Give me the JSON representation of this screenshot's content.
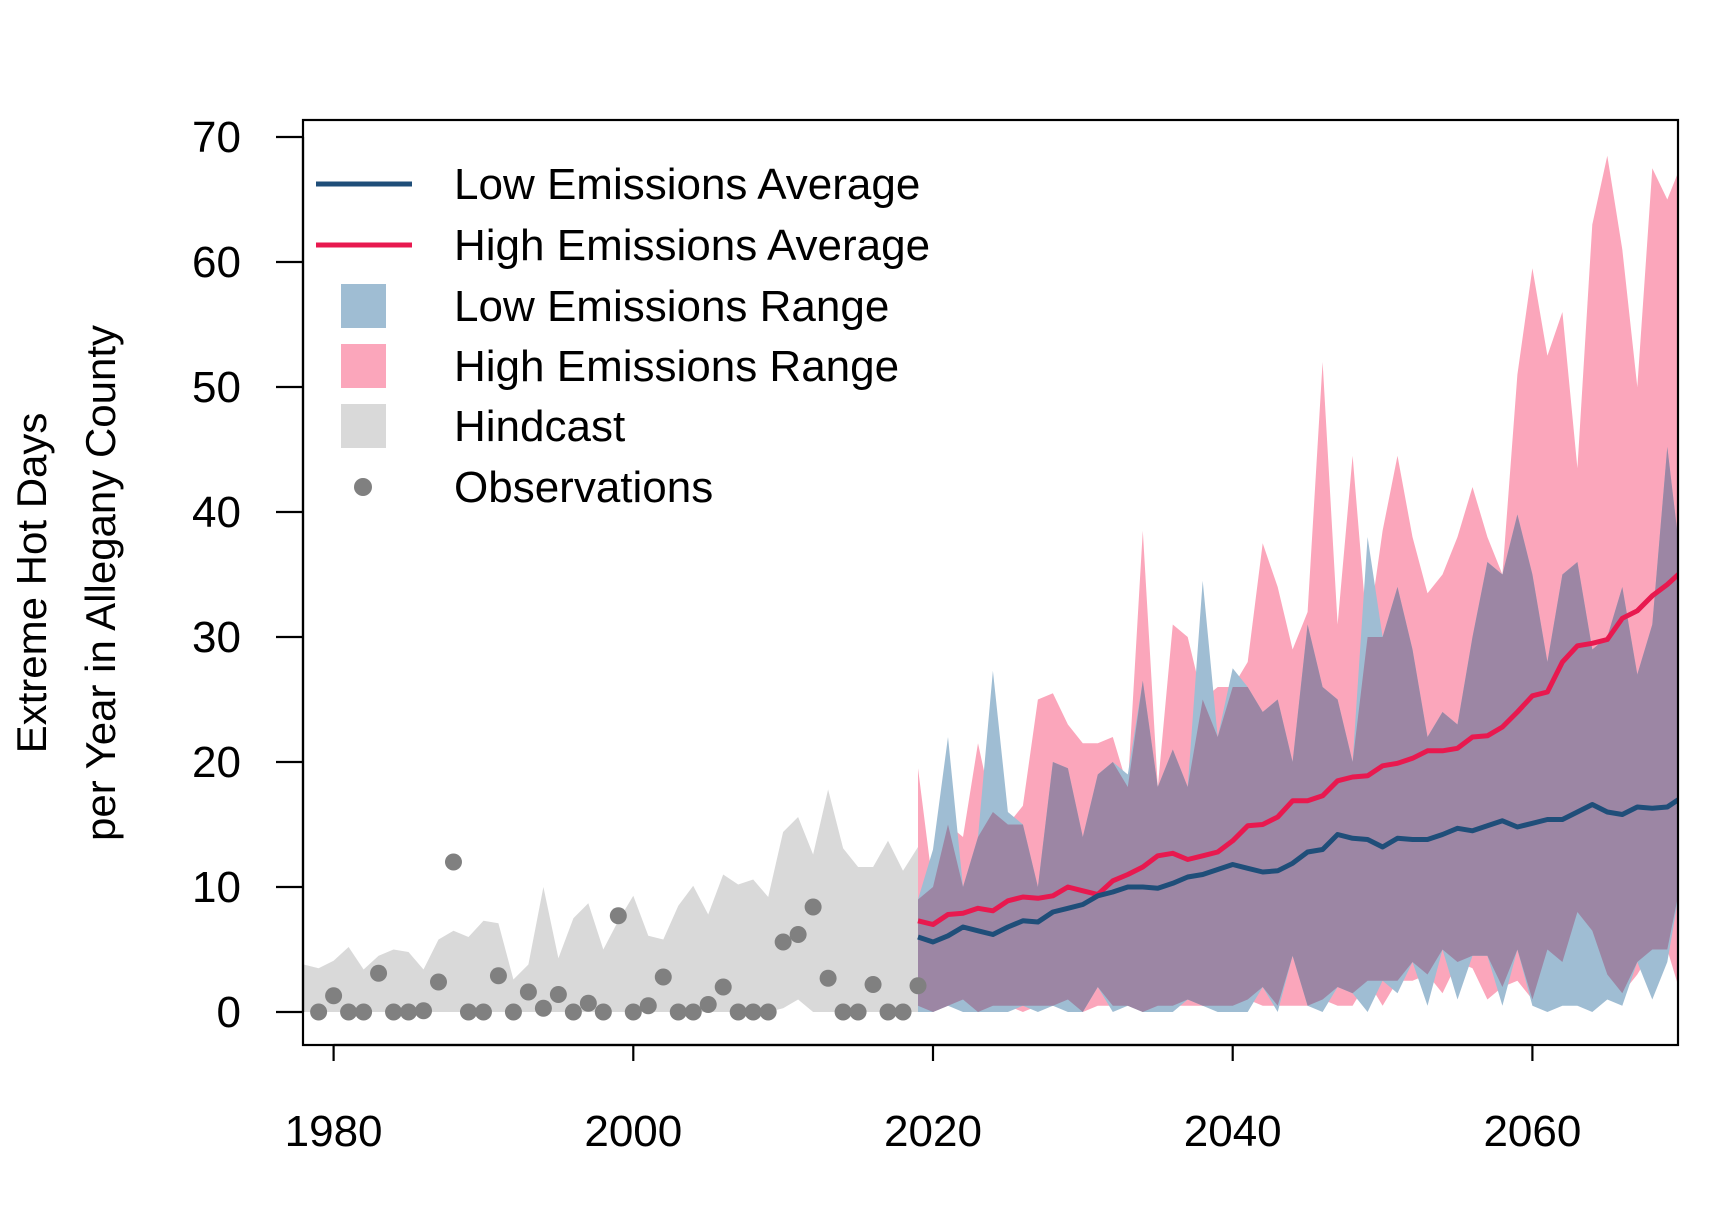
{
  "colors": {
    "low_line": "#1f4e79",
    "high_line": "#e8194f",
    "low_range": "#9fbdd3",
    "high_range": "#fba6bb",
    "overlap": "#9c86a4",
    "hindcast": "#d9d9d9",
    "observations": "#808080"
  },
  "chart_data": {
    "type": "line",
    "ylabel_lines": [
      "Extreme Hot Days",
      "per Year in Allegany County"
    ],
    "xlim": [
      1978,
      2070
    ],
    "ylim": [
      -2.7,
      70
    ],
    "x_ticks": [
      1980,
      2000,
      2020,
      2040,
      2060
    ],
    "x_tick_labels": [
      "1980",
      "2000",
      "2020",
      "2040",
      "2060"
    ],
    "y_ticks": [
      0,
      10,
      20,
      30,
      40,
      50,
      60,
      70
    ],
    "y_tick_labels": [
      "0",
      "10",
      "20",
      "30",
      "40",
      "50",
      "60",
      "70"
    ],
    "grid": false,
    "legend_position": "top-left",
    "legend": [
      {
        "label": "Low Emissions Average",
        "symbol": "line",
        "color": "#1f4e79"
      },
      {
        "label": "High Emissions Average",
        "symbol": "line",
        "color": "#e8194f"
      },
      {
        "label": "Low Emissions Range",
        "symbol": "box",
        "color": "#9fbdd3"
      },
      {
        "label": "High Emissions Range",
        "symbol": "box",
        "color": "#fba6bb"
      },
      {
        "label": "Hindcast",
        "symbol": "box",
        "color": "#d9d9d9"
      },
      {
        "label": "Observations",
        "symbol": "point",
        "color": "#808080"
      }
    ],
    "hindcast": {
      "x": [
        1978,
        1979,
        1980,
        1981,
        1982,
        1983,
        1984,
        1985,
        1986,
        1987,
        1988,
        1989,
        1990,
        1991,
        1992,
        1993,
        1994,
        1995,
        1996,
        1997,
        1998,
        1999,
        2000,
        2001,
        2002,
        2003,
        2004,
        2005,
        2006,
        2007,
        2008,
        2009,
        2010,
        2011,
        2012,
        2013,
        2014,
        2015,
        2016,
        2017,
        2018,
        2019
      ],
      "upper": [
        3.8,
        3.5,
        4.1,
        5.2,
        3.4,
        4.5,
        5.0,
        4.8,
        3.4,
        5.8,
        6.5,
        6.0,
        7.3,
        7.1,
        2.6,
        3.8,
        10.0,
        4.3,
        7.5,
        8.7,
        5.0,
        7.3,
        9.3,
        6.1,
        5.8,
        8.5,
        10.1,
        7.8,
        11.0,
        10.2,
        10.6,
        9.2,
        14.4,
        15.6,
        12.6,
        17.8,
        13.1,
        11.6,
        11.6,
        13.7,
        11.3,
        13.2
      ],
      "lower": [
        0,
        0,
        0,
        0,
        0,
        0,
        0,
        0,
        0,
        0,
        0,
        0,
        0,
        0,
        0,
        0,
        0,
        0,
        0,
        0,
        0,
        0,
        0,
        0,
        0,
        0,
        0,
        0,
        0,
        0,
        0,
        0,
        0.3,
        1.0,
        0,
        0,
        0,
        0,
        0,
        0,
        0,
        0
      ]
    },
    "observations": {
      "x": [
        1979,
        1980,
        1981,
        1982,
        1983,
        1984,
        1985,
        1986,
        1987,
        1988,
        1989,
        1990,
        1991,
        1992,
        1993,
        1994,
        1995,
        1996,
        1997,
        1998,
        1999,
        2000,
        2001,
        2002,
        2003,
        2004,
        2005,
        2006,
        2007,
        2008,
        2009,
        2010,
        2011,
        2012,
        2013,
        2014,
        2015,
        2016,
        2017,
        2018,
        2019
      ],
      "y": [
        0,
        1.3,
        0,
        0,
        3.1,
        0,
        0,
        0.1,
        2.4,
        12.0,
        0,
        0,
        2.9,
        0,
        1.6,
        0.3,
        1.4,
        0,
        0.7,
        0,
        7.7,
        0,
        0.5,
        2.8,
        0,
        0,
        0.6,
        2.0,
        0,
        0,
        0,
        5.6,
        6.2,
        8.4,
        2.7,
        0,
        0,
        2.2,
        0,
        0,
        2.1
      ]
    },
    "low_emissions": {
      "x": [
        2019,
        2020,
        2021,
        2022,
        2023,
        2024,
        2025,
        2026,
        2027,
        2028,
        2029,
        2030,
        2031,
        2032,
        2033,
        2034,
        2035,
        2036,
        2037,
        2038,
        2039,
        2040,
        2041,
        2042,
        2043,
        2044,
        2045,
        2046,
        2047,
        2048,
        2049,
        2050,
        2051,
        2052,
        2053,
        2054,
        2055,
        2056,
        2057,
        2058,
        2059,
        2060,
        2061,
        2062,
        2063,
        2064,
        2065,
        2066,
        2067,
        2068,
        2069,
        2070
      ],
      "average": [
        6.0,
        5.6,
        6.1,
        6.8,
        6.5,
        6.2,
        6.8,
        7.3,
        7.2,
        8.0,
        8.3,
        8.6,
        9.3,
        9.6,
        10.0,
        10.0,
        9.9,
        10.3,
        10.8,
        11.0,
        11.4,
        11.8,
        11.5,
        11.2,
        11.3,
        11.9,
        12.8,
        13.0,
        14.2,
        13.9,
        13.8,
        13.2,
        13.9,
        13.8,
        13.8,
        14.2,
        14.7,
        14.5,
        14.9,
        15.3,
        14.8,
        15.1,
        15.4,
        15.4,
        16.0,
        16.6,
        16.0,
        15.8,
        16.4,
        16.3,
        16.4,
        17.2
      ],
      "upper": [
        9.0,
        13.0,
        22.0,
        10.0,
        14.0,
        27.3,
        16.0,
        15.0,
        10.0,
        20.0,
        19.5,
        14.0,
        19.0,
        20.0,
        19.0,
        26.5,
        18.0,
        21.0,
        18.0,
        34.5,
        22.0,
        27.5,
        26.0,
        24.0,
        25.0,
        20.0,
        31.0,
        26.0,
        25.0,
        20.0,
        38.0,
        30.0,
        34.0,
        29.0,
        22.0,
        24.0,
        23.0,
        30.0,
        36.0,
        35.0,
        39.8,
        35.0,
        28.0,
        35.0,
        36.0,
        29.0,
        30.0,
        34.0,
        27.0,
        31.0,
        45.2,
        35.0
      ],
      "lower": [
        0,
        0,
        0.5,
        0,
        0,
        0,
        0,
        0.5,
        0,
        0.5,
        0,
        0,
        2.0,
        0,
        0.5,
        0,
        0,
        0,
        1.0,
        0.5,
        0,
        0,
        0,
        2.0,
        0,
        4.5,
        0.5,
        0,
        2.0,
        1.5,
        0,
        2.5,
        1.5,
        4.0,
        0.5,
        5.0,
        1.0,
        4.5,
        4.5,
        0.5,
        5.0,
        0.5,
        0,
        0.5,
        0.5,
        0,
        1.0,
        0.5,
        4.0,
        1.0,
        4.0,
        11.0
      ]
    },
    "high_emissions": {
      "x": [
        2019,
        2020,
        2021,
        2022,
        2023,
        2024,
        2025,
        2026,
        2027,
        2028,
        2029,
        2030,
        2031,
        2032,
        2033,
        2034,
        2035,
        2036,
        2037,
        2038,
        2039,
        2040,
        2041,
        2042,
        2043,
        2044,
        2045,
        2046,
        2047,
        2048,
        2049,
        2050,
        2051,
        2052,
        2053,
        2054,
        2055,
        2056,
        2057,
        2058,
        2059,
        2060,
        2061,
        2062,
        2063,
        2064,
        2065,
        2066,
        2067,
        2068,
        2069,
        2070
      ],
      "average": [
        7.3,
        7.0,
        7.8,
        7.9,
        8.3,
        8.1,
        8.9,
        9.2,
        9.1,
        9.3,
        10.0,
        9.7,
        9.4,
        10.5,
        11.0,
        11.6,
        12.5,
        12.7,
        12.2,
        12.5,
        12.8,
        13.7,
        14.9,
        15.0,
        15.6,
        16.9,
        16.9,
        17.3,
        18.5,
        18.8,
        18.9,
        19.7,
        19.9,
        20.3,
        20.9,
        20.9,
        21.1,
        22.0,
        22.1,
        22.8,
        24.0,
        25.3,
        25.6,
        28.0,
        29.3,
        29.5,
        29.8,
        31.5,
        32.1,
        33.3,
        34.2,
        35.3
      ],
      "upper": [
        19.5,
        10.0,
        15.0,
        14.0,
        21.5,
        16.0,
        15.0,
        16.5,
        25.0,
        25.5,
        23.0,
        21.5,
        21.5,
        22.0,
        18.0,
        38.5,
        18.0,
        31.0,
        30.0,
        25.0,
        26.0,
        26.0,
        28.0,
        37.5,
        34.0,
        29.0,
        32.0,
        52.0,
        31.0,
        44.5,
        30.0,
        38.5,
        44.5,
        38.0,
        33.5,
        35.0,
        38.0,
        42.0,
        38.0,
        35.0,
        51.0,
        59.5,
        52.5,
        56.0,
        43.5,
        63.0,
        68.5,
        61.0,
        50.0,
        67.5,
        65.0,
        68.0
      ],
      "lower": [
        0.5,
        0,
        0.5,
        1.0,
        0,
        0.5,
        0.5,
        0,
        0.5,
        0.5,
        1.0,
        0,
        0.5,
        0.5,
        0.5,
        0,
        0.5,
        0.5,
        0.5,
        0.5,
        0.5,
        0.5,
        1.0,
        0.5,
        0.5,
        0.5,
        0.5,
        1.0,
        0.5,
        0.5,
        2.5,
        0.5,
        2.5,
        2.5,
        3.0,
        1.5,
        4.0,
        3.5,
        1.0,
        2.0,
        2.5,
        1.0,
        5.0,
        4.0,
        8.0,
        6.5,
        3.0,
        1.5,
        3.0,
        5.0,
        5.0,
        1.0
      ]
    }
  }
}
